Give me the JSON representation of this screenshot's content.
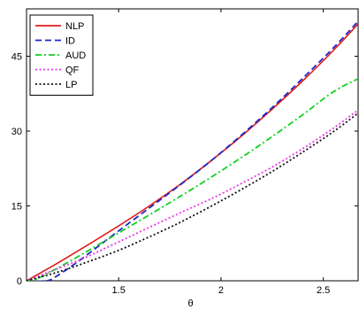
{
  "chart_data": {
    "type": "line",
    "xlabel": "θ",
    "ylabel": "",
    "xlim": [
      1.05,
      2.67
    ],
    "ylim": [
      0,
      54.5
    ],
    "xticks": [
      1.5,
      2,
      2.5
    ],
    "xtick_labels": [
      "1.5",
      "2",
      "2.5"
    ],
    "yticks": [
      0,
      15,
      30,
      45
    ],
    "ytick_labels": [
      "0",
      "15",
      "30",
      "45"
    ],
    "grid": false,
    "legend_position": "top-left",
    "series": [
      {
        "name": "NLP",
        "color": "#e01b1b",
        "dash": "solid",
        "x": [
          1.05,
          1.2,
          1.35,
          1.5,
          1.65,
          1.8,
          1.95,
          2.1,
          2.25,
          2.4,
          2.55,
          2.67
        ],
        "y": [
          0.0,
          3.5,
          7.2,
          11.0,
          15.0,
          19.3,
          24.0,
          29.0,
          34.4,
          40.1,
          46.2,
          51.5
        ]
      },
      {
        "name": "ID",
        "color": "#1f26c9",
        "dash": "dashed",
        "x": [
          1.05,
          1.15,
          1.2,
          1.3,
          1.4,
          1.5,
          1.65,
          1.8,
          1.95,
          2.1,
          2.25,
          2.4,
          2.55,
          2.67
        ],
        "y": [
          0.0,
          0.0,
          1.0,
          3.8,
          6.9,
          10.0,
          14.6,
          19.2,
          24.0,
          29.2,
          34.7,
          40.6,
          46.7,
          52.0
        ]
      },
      {
        "name": "AUD",
        "color": "#11d11e",
        "dash": "dashdot",
        "x": [
          1.05,
          1.1,
          1.2,
          1.35,
          1.5,
          1.65,
          1.8,
          1.95,
          2.1,
          2.25,
          2.4,
          2.55,
          2.67
        ],
        "y": [
          0.0,
          0.4,
          2.5,
          6.0,
          9.6,
          13.2,
          16.9,
          20.7,
          24.7,
          28.9,
          33.3,
          37.9,
          40.5
        ]
      },
      {
        "name": "QF",
        "color": "#ee33ee",
        "dash": "dotted",
        "x": [
          1.05,
          1.2,
          1.35,
          1.5,
          1.65,
          1.8,
          1.95,
          2.1,
          2.25,
          2.4,
          2.55,
          2.67
        ],
        "y": [
          0.0,
          2.4,
          4.9,
          7.8,
          10.7,
          13.6,
          16.4,
          19.5,
          22.8,
          26.5,
          30.6,
          34.2
        ]
      },
      {
        "name": "LP",
        "color": "#111111",
        "dash": "dotted",
        "x": [
          1.05,
          1.2,
          1.35,
          1.5,
          1.65,
          1.8,
          1.95,
          2.1,
          2.25,
          2.4,
          2.55,
          2.67
        ],
        "y": [
          0.0,
          1.7,
          3.8,
          6.1,
          8.8,
          11.7,
          14.9,
          18.3,
          21.9,
          25.8,
          29.9,
          33.6
        ]
      }
    ]
  }
}
